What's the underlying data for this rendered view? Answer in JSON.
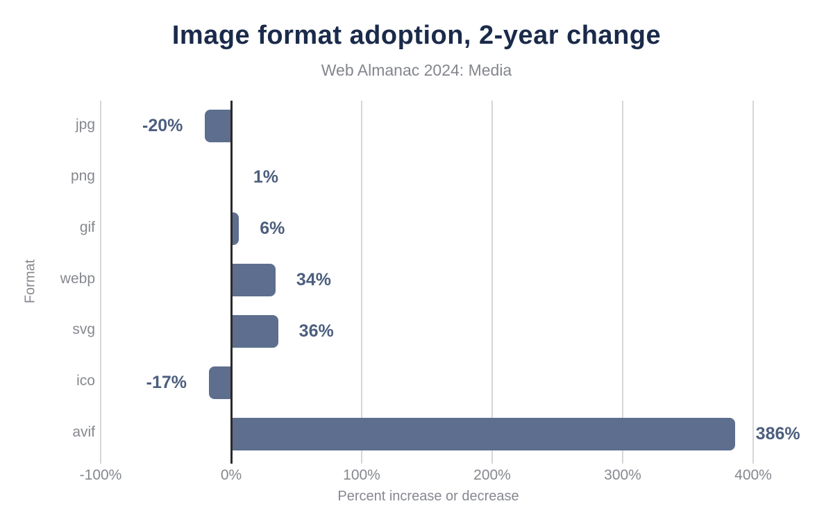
{
  "chart_data": {
    "type": "bar",
    "orientation": "horizontal",
    "title": "Image format adoption, 2-year change",
    "subtitle": "Web Almanac 2024: Media",
    "xlabel": "Percent increase or decrease",
    "ylabel": "Format",
    "categories": [
      "jpg",
      "png",
      "gif",
      "webp",
      "svg",
      "ico",
      "avif"
    ],
    "values": [
      -20,
      1,
      6,
      34,
      36,
      -17,
      386
    ],
    "value_labels": [
      "-20%",
      "1%",
      "6%",
      "34%",
      "36%",
      "-17%",
      "386%"
    ],
    "xlim": [
      -100,
      400
    ],
    "xticks": [
      -100,
      0,
      100,
      200,
      300,
      400
    ],
    "xtick_labels": [
      "-100%",
      "0%",
      "100%",
      "200%",
      "300%",
      "400%"
    ],
    "grid": true,
    "legend": false,
    "colors": {
      "bar": "#5d6e8e",
      "value_label": "#4c5e7e",
      "title": "#1a2a4a",
      "subtitle": "#83868c",
      "axis_text": "#85888e",
      "gridline": "#d6d6d6",
      "zero_line": "#2a2a2a",
      "background": "#ffffff"
    }
  }
}
